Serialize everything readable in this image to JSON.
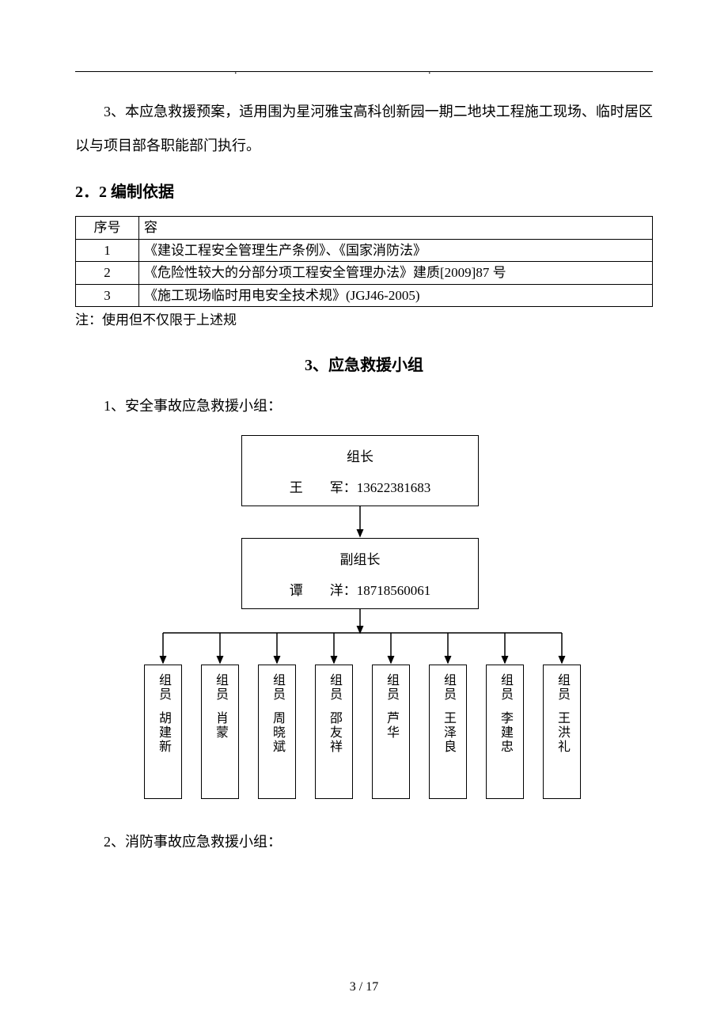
{
  "header": {
    "dot": "."
  },
  "para3": "3、本应急救援预案，适用围为星河雅宝高科创新园一期二地块工程施工现场、临时居区以与项目部各职能部门执行。",
  "section22": "2．2 编制依据",
  "basis_table": {
    "headers": {
      "seq": "序号",
      "content": "容"
    },
    "rows": [
      {
        "seq": "1",
        "content": "《建设工程安全管理生产条例》、《国家消防法》"
      },
      {
        "seq": "2",
        "content": "《危险性较大的分部分项工程安全管理办法》建质[2009]87 号"
      },
      {
        "seq": "3",
        "content": "《施工现场临时用电安全技术规》(JGJ46-2005)"
      }
    ],
    "note": "注：使用但不仅限于上述规"
  },
  "chapter3_title": "3、应急救援小组",
  "sub1": "1、安全事故应急救援小组：",
  "org": {
    "leader": {
      "title": "组长",
      "line": "王　　军：13622381683"
    },
    "deputy": {
      "title": "副组长",
      "line": "谭　　洋：18718560061"
    },
    "members": [
      {
        "role": "组员",
        "name": "胡建新"
      },
      {
        "role": "组员",
        "name": "肖蒙"
      },
      {
        "role": "组员",
        "name": "周晓斌"
      },
      {
        "role": "组员",
        "name": "邵友祥"
      },
      {
        "role": "组员",
        "name": "芦华"
      },
      {
        "role": "组员",
        "name": "王泽良"
      },
      {
        "role": "组员",
        "name": "李建忠"
      },
      {
        "role": "组员",
        "name": "王洪礼"
      }
    ]
  },
  "sub2": "2、消防事故应急救援小组：",
  "footer": "3 / 17",
  "chart": {
    "member_x": [
      2,
      74,
      146,
      218,
      290,
      362,
      434,
      506
    ],
    "member_width": 48,
    "arrow_color": "#000000"
  }
}
